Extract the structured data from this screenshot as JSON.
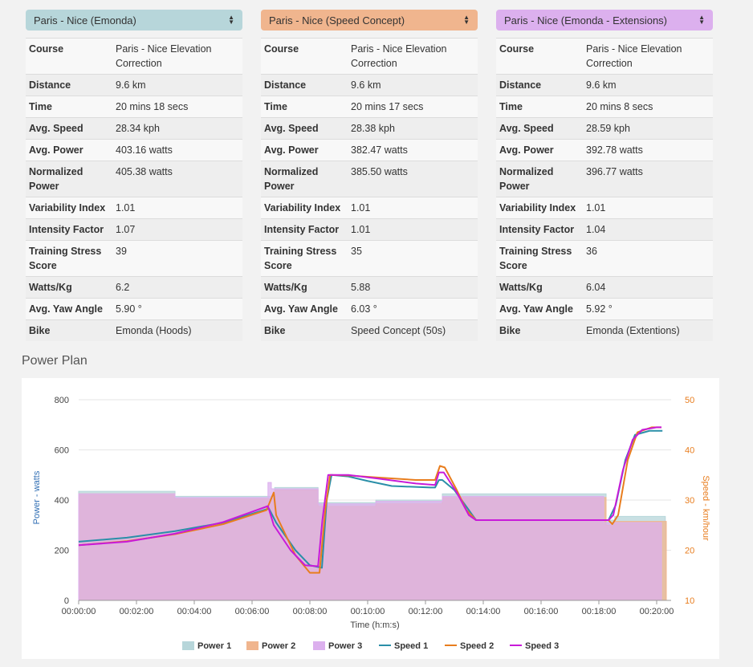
{
  "columns": [
    {
      "select": "Paris - Nice (Emonda)",
      "color": "#b7d6da",
      "rows": [
        {
          "key": "Course",
          "value": "Paris - Nice Elevation Correction"
        },
        {
          "key": "Distance",
          "value": "9.6 km"
        },
        {
          "key": "Time",
          "value": "20 mins 18 secs"
        },
        {
          "key": "Avg. Speed",
          "value": "28.34 kph"
        },
        {
          "key": "Avg. Power",
          "value": "403.16 watts"
        },
        {
          "key": "Normalized Power",
          "value": "405.38 watts"
        },
        {
          "key": "Variability Index",
          "value": "1.01"
        },
        {
          "key": "Intensity Factor",
          "value": "1.07"
        },
        {
          "key": "Training Stress Score",
          "value": "39"
        },
        {
          "key": "Watts/Kg",
          "value": "6.2"
        },
        {
          "key": "Avg. Yaw Angle",
          "value": "5.90 °"
        },
        {
          "key": "Bike",
          "value": "Emonda (Hoods)"
        }
      ]
    },
    {
      "select": "Paris - Nice (Speed Concept)",
      "color": "#f0b58e",
      "rows": [
        {
          "key": "Course",
          "value": "Paris - Nice Elevation Correction"
        },
        {
          "key": "Distance",
          "value": "9.6 km"
        },
        {
          "key": "Time",
          "value": "20 mins 17 secs"
        },
        {
          "key": "Avg. Speed",
          "value": "28.38 kph"
        },
        {
          "key": "Avg. Power",
          "value": "382.47 watts"
        },
        {
          "key": "Normalized Power",
          "value": "385.50 watts"
        },
        {
          "key": "Variability Index",
          "value": "1.01"
        },
        {
          "key": "Intensity Factor",
          "value": "1.01"
        },
        {
          "key": "Training Stress Score",
          "value": "35"
        },
        {
          "key": "Watts/Kg",
          "value": "5.88"
        },
        {
          "key": "Avg. Yaw Angle",
          "value": "6.03 °"
        },
        {
          "key": "Bike",
          "value": "Speed Concept (50s)"
        }
      ]
    },
    {
      "select": "Paris - Nice (Emonda - Extensions)",
      "color": "#dcb0ee",
      "rows": [
        {
          "key": "Course",
          "value": "Paris - Nice Elevation Correction"
        },
        {
          "key": "Distance",
          "value": "9.6 km"
        },
        {
          "key": "Time",
          "value": "20 mins 8 secs"
        },
        {
          "key": "Avg. Speed",
          "value": "28.59 kph"
        },
        {
          "key": "Avg. Power",
          "value": "392.78 watts"
        },
        {
          "key": "Normalized Power",
          "value": "396.77 watts"
        },
        {
          "key": "Variability Index",
          "value": "1.01"
        },
        {
          "key": "Intensity Factor",
          "value": "1.04"
        },
        {
          "key": "Training Stress Score",
          "value": "36"
        },
        {
          "key": "Watts/Kg",
          "value": "6.04"
        },
        {
          "key": "Avg. Yaw Angle",
          "value": "5.92 °"
        },
        {
          "key": "Bike",
          "value": "Emonda (Extentions)"
        }
      ]
    }
  ],
  "section_title": "Power Plan",
  "chart_data": {
    "type": "area",
    "title": "Power Plan",
    "xlabel": "Time (h:m:s)",
    "ylabel": "Power - watts",
    "y2label": "Speed - km/hour",
    "xlim": [
      0,
      1230
    ],
    "ylim": [
      0,
      800
    ],
    "y2lim": [
      10,
      50
    ],
    "x_ticks": [
      "00:00:00",
      "00:02:00",
      "00:04:00",
      "00:06:00",
      "00:08:00",
      "00:10:00",
      "00:12:00",
      "00:14:00",
      "00:16:00",
      "00:18:00",
      "00:20:00"
    ],
    "y_ticks": [
      "0",
      "200",
      "400",
      "600",
      "800"
    ],
    "y2_ticks": [
      "10",
      "20",
      "30",
      "40",
      "50"
    ],
    "legend": [
      "Power 1",
      "Power 2",
      "Power 3",
      "Speed 1",
      "Speed 2",
      "Speed 3"
    ],
    "legend_position": "bottom",
    "colors": {
      "Power 1": "#b7d6da",
      "Power 2": "#f0b58e",
      "Power 3": "#dcb0ee",
      "Speed 1": "#2a8fa8",
      "Speed 2": "#e87d1e",
      "Speed 3": "#c81ad9",
      "left_axis": "#2f6db3",
      "right_axis": "#e87d1e"
    },
    "power_series": [
      {
        "name": "Power 1",
        "steps": [
          [
            0,
            435
          ],
          [
            200,
            415
          ],
          [
            407,
            450
          ],
          [
            497,
            390
          ],
          [
            617,
            400
          ],
          [
            755,
            425
          ],
          [
            1095,
            320
          ],
          [
            1113,
            335
          ],
          [
            1218,
            0
          ]
        ]
      },
      {
        "name": "Power 2",
        "steps": [
          [
            0,
            425
          ],
          [
            200,
            405
          ],
          [
            407,
            440
          ],
          [
            497,
            375
          ],
          [
            617,
            385
          ],
          [
            755,
            410
          ],
          [
            1095,
            300
          ],
          [
            1113,
            315
          ],
          [
            1220,
            0
          ]
        ]
      },
      {
        "name": "Power 3",
        "steps": [
          [
            0,
            425
          ],
          [
            200,
            410
          ],
          [
            393,
            470
          ],
          [
            400,
            445
          ],
          [
            497,
            385
          ],
          [
            617,
            395
          ],
          [
            755,
            415
          ],
          [
            1090,
            310
          ],
          [
            1113,
            310
          ],
          [
            1210,
            0
          ]
        ]
      }
    ],
    "speed_series": [
      {
        "name": "Speed 1",
        "points": [
          [
            0,
            21.7
          ],
          [
            100,
            22.5
          ],
          [
            200,
            23.8
          ],
          [
            300,
            25.5
          ],
          [
            395,
            28.3
          ],
          [
            410,
            25.5
          ],
          [
            450,
            20
          ],
          [
            480,
            17
          ],
          [
            505,
            16.5
          ],
          [
            515,
            30
          ],
          [
            525,
            35
          ],
          [
            560,
            34.7
          ],
          [
            600,
            33.8
          ],
          [
            650,
            32.8
          ],
          [
            730,
            32.5
          ],
          [
            740,
            32.5
          ],
          [
            748,
            34
          ],
          [
            755,
            34
          ],
          [
            780,
            32
          ],
          [
            810,
            28
          ],
          [
            825,
            26
          ],
          [
            850,
            26
          ],
          [
            1100,
            26
          ],
          [
            1115,
            29
          ],
          [
            1135,
            38
          ],
          [
            1155,
            43
          ],
          [
            1185,
            43.8
          ],
          [
            1212,
            43.8
          ]
        ]
      },
      {
        "name": "Speed 2",
        "points": [
          [
            0,
            21
          ],
          [
            100,
            21.8
          ],
          [
            200,
            23.2
          ],
          [
            300,
            25.2
          ],
          [
            390,
            28
          ],
          [
            405,
            31.5
          ],
          [
            410,
            27
          ],
          [
            450,
            19
          ],
          [
            480,
            15.5
          ],
          [
            500,
            15.5
          ],
          [
            512,
            28
          ],
          [
            522,
            35
          ],
          [
            560,
            34.9
          ],
          [
            620,
            34.5
          ],
          [
            700,
            34
          ],
          [
            740,
            34
          ],
          [
            750,
            36.8
          ],
          [
            760,
            36.5
          ],
          [
            785,
            32
          ],
          [
            805,
            28
          ],
          [
            825,
            26
          ],
          [
            850,
            26
          ],
          [
            1100,
            26
          ],
          [
            1108,
            25.2
          ],
          [
            1120,
            27
          ],
          [
            1140,
            38
          ],
          [
            1160,
            43.5
          ],
          [
            1190,
            44.5
          ],
          [
            1210,
            44.5
          ]
        ]
      },
      {
        "name": "Speed 3",
        "points": [
          [
            0,
            21
          ],
          [
            100,
            21.7
          ],
          [
            200,
            23.3
          ],
          [
            300,
            25.6
          ],
          [
            393,
            28.8
          ],
          [
            405,
            25
          ],
          [
            440,
            20
          ],
          [
            470,
            17
          ],
          [
            497,
            16.8
          ],
          [
            506,
            26
          ],
          [
            518,
            35
          ],
          [
            560,
            35
          ],
          [
            620,
            34.3
          ],
          [
            700,
            33.3
          ],
          [
            740,
            33
          ],
          [
            748,
            35.5
          ],
          [
            758,
            35.5
          ],
          [
            785,
            31.5
          ],
          [
            810,
            27
          ],
          [
            825,
            26
          ],
          [
            850,
            26
          ],
          [
            1100,
            26
          ],
          [
            1110,
            27
          ],
          [
            1130,
            36
          ],
          [
            1150,
            42
          ],
          [
            1170,
            44
          ],
          [
            1200,
            44.5
          ],
          [
            1210,
            44.5
          ]
        ]
      }
    ]
  }
}
